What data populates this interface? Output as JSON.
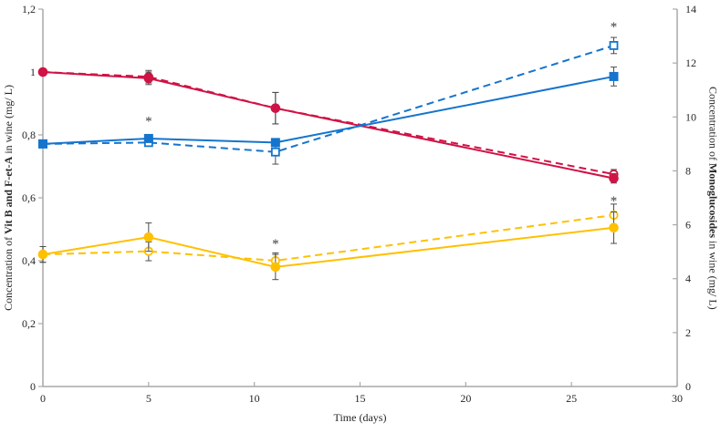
{
  "chart_data": {
    "type": "line",
    "grid": false,
    "legend": "none",
    "x_axis": {
      "label": "Time (days)",
      "lim": [
        0,
        30
      ],
      "tick_values": [
        0,
        5,
        10,
        15,
        20,
        25,
        30
      ],
      "ticks": [
        "0",
        "5",
        "10",
        "15",
        "20",
        "25",
        "30"
      ]
    },
    "left_axis": {
      "label_prefix": "Concentration of ",
      "label_bold": "Vit B and F-et-A",
      "label_suffix": " in wine (mg/ L)",
      "lim": [
        0,
        1.2
      ],
      "tick_values": [
        0,
        0.2,
        0.4,
        0.6,
        0.8,
        1,
        1.2
      ],
      "ticks": [
        "0",
        "0,2",
        "0,4",
        "0,6",
        "0,8",
        "1",
        "1,2"
      ]
    },
    "right_axis": {
      "label_prefix": "Concentration of ",
      "label_bold": "Monoglucosides",
      "label_suffix": " in wine (mg/ L)",
      "lim": [
        0,
        14
      ],
      "tick_values": [
        0,
        2,
        4,
        6,
        8,
        10,
        12,
        14
      ],
      "ticks": [
        "0",
        "2",
        "4",
        "6",
        "8",
        "10",
        "12",
        "14"
      ]
    },
    "x": [
      0,
      5,
      11,
      27
    ],
    "series": [
      {
        "id": "red-dashed",
        "axis": "left",
        "color_key": "red",
        "line": "dashed",
        "marker": "circle",
        "marker_fill": "open",
        "values": [
          1.0,
          0.985,
          0.885,
          0.675
        ],
        "errors": [
          0.01,
          0.02,
          0.05,
          0.015
        ]
      },
      {
        "id": "red-solid",
        "axis": "left",
        "color_key": "red",
        "line": "solid",
        "marker": "circle",
        "marker_fill": "filled",
        "values": [
          1.0,
          0.98,
          0.885,
          0.662
        ],
        "errors": [
          0.01,
          0.02,
          0.05,
          0.015
        ]
      },
      {
        "id": "yellow-dashed",
        "axis": "left",
        "color_key": "yellow",
        "line": "dashed",
        "marker": "circle",
        "marker_fill": "open",
        "values": [
          0.42,
          0.43,
          0.4,
          0.545
        ],
        "errors": [
          0.025,
          0.03,
          0.025,
          0.035
        ]
      },
      {
        "id": "yellow-solid",
        "axis": "left",
        "color_key": "yellow",
        "line": "solid",
        "marker": "circle",
        "marker_fill": "filled",
        "values": [
          0.42,
          0.475,
          0.38,
          0.505
        ],
        "errors": [
          0.025,
          0.045,
          0.04,
          0.05
        ]
      },
      {
        "id": "blue-dashed",
        "axis": "right",
        "color_key": "blue",
        "line": "dashed",
        "marker": "square",
        "marker_fill": "open",
        "values": [
          9.0,
          9.05,
          8.7,
          12.65
        ],
        "errors": [
          0.12,
          0.12,
          0.45,
          0.3
        ]
      },
      {
        "id": "blue-solid",
        "axis": "right",
        "color_key": "blue",
        "line": "solid",
        "marker": "square",
        "marker_fill": "filled",
        "values": [
          9.0,
          9.2,
          9.05,
          11.5
        ],
        "errors": [
          0.12,
          0.12,
          0.12,
          0.35
        ]
      }
    ],
    "annotations": [
      {
        "text": "*",
        "x": 5,
        "y_left": 0.845
      },
      {
        "text": "*",
        "x": 11,
        "y_left": 0.455
      },
      {
        "text": "*",
        "x": 27,
        "y_left": 1.145
      },
      {
        "text": "*",
        "x": 27,
        "y_left": 0.592
      }
    ]
  },
  "style": {
    "colors": {
      "red": "#d01245",
      "yellow": "#ffc000",
      "blue": "#1574cd"
    },
    "axis_color": "#a9a9a9",
    "error_bar_color": "#4d4d4d",
    "text_color": "#262626",
    "background": "#ffffff"
  }
}
